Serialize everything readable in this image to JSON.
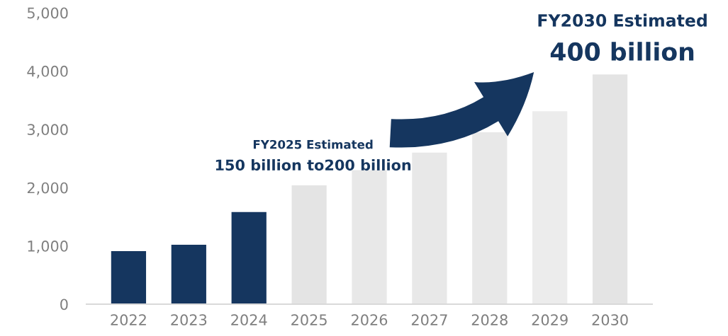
{
  "chart_data": {
    "type": "bar",
    "categories": [
      "2022",
      "2023",
      "2024",
      "2025",
      "2026",
      "2027",
      "2028",
      "2029",
      "2030"
    ],
    "values": [
      910,
      1020,
      1580,
      2040,
      2300,
      2600,
      2950,
      3310,
      3940
    ],
    "colors": [
      "#15365f",
      "#15365f",
      "#15365f",
      "#e4e4e4",
      "#e8e8e8",
      "#e8e8e8",
      "#e8e8e8",
      "#ececec",
      "#e4e4e4"
    ],
    "ylim": [
      0,
      5000
    ],
    "yticks": [
      {
        "value": 0,
        "label": "0"
      },
      {
        "value": 1000,
        "label": "1,000"
      },
      {
        "value": 2000,
        "label": "2,000"
      },
      {
        "value": 3000,
        "label": "3,000"
      },
      {
        "value": 4000,
        "label": "4,000"
      },
      {
        "value": 5000,
        "label": "5,000"
      }
    ],
    "grid": false,
    "annotations": [
      "FY2025 Estimated",
      "150 billion to200 billion",
      "FY2030 Estimated",
      "400 billion"
    ]
  }
}
